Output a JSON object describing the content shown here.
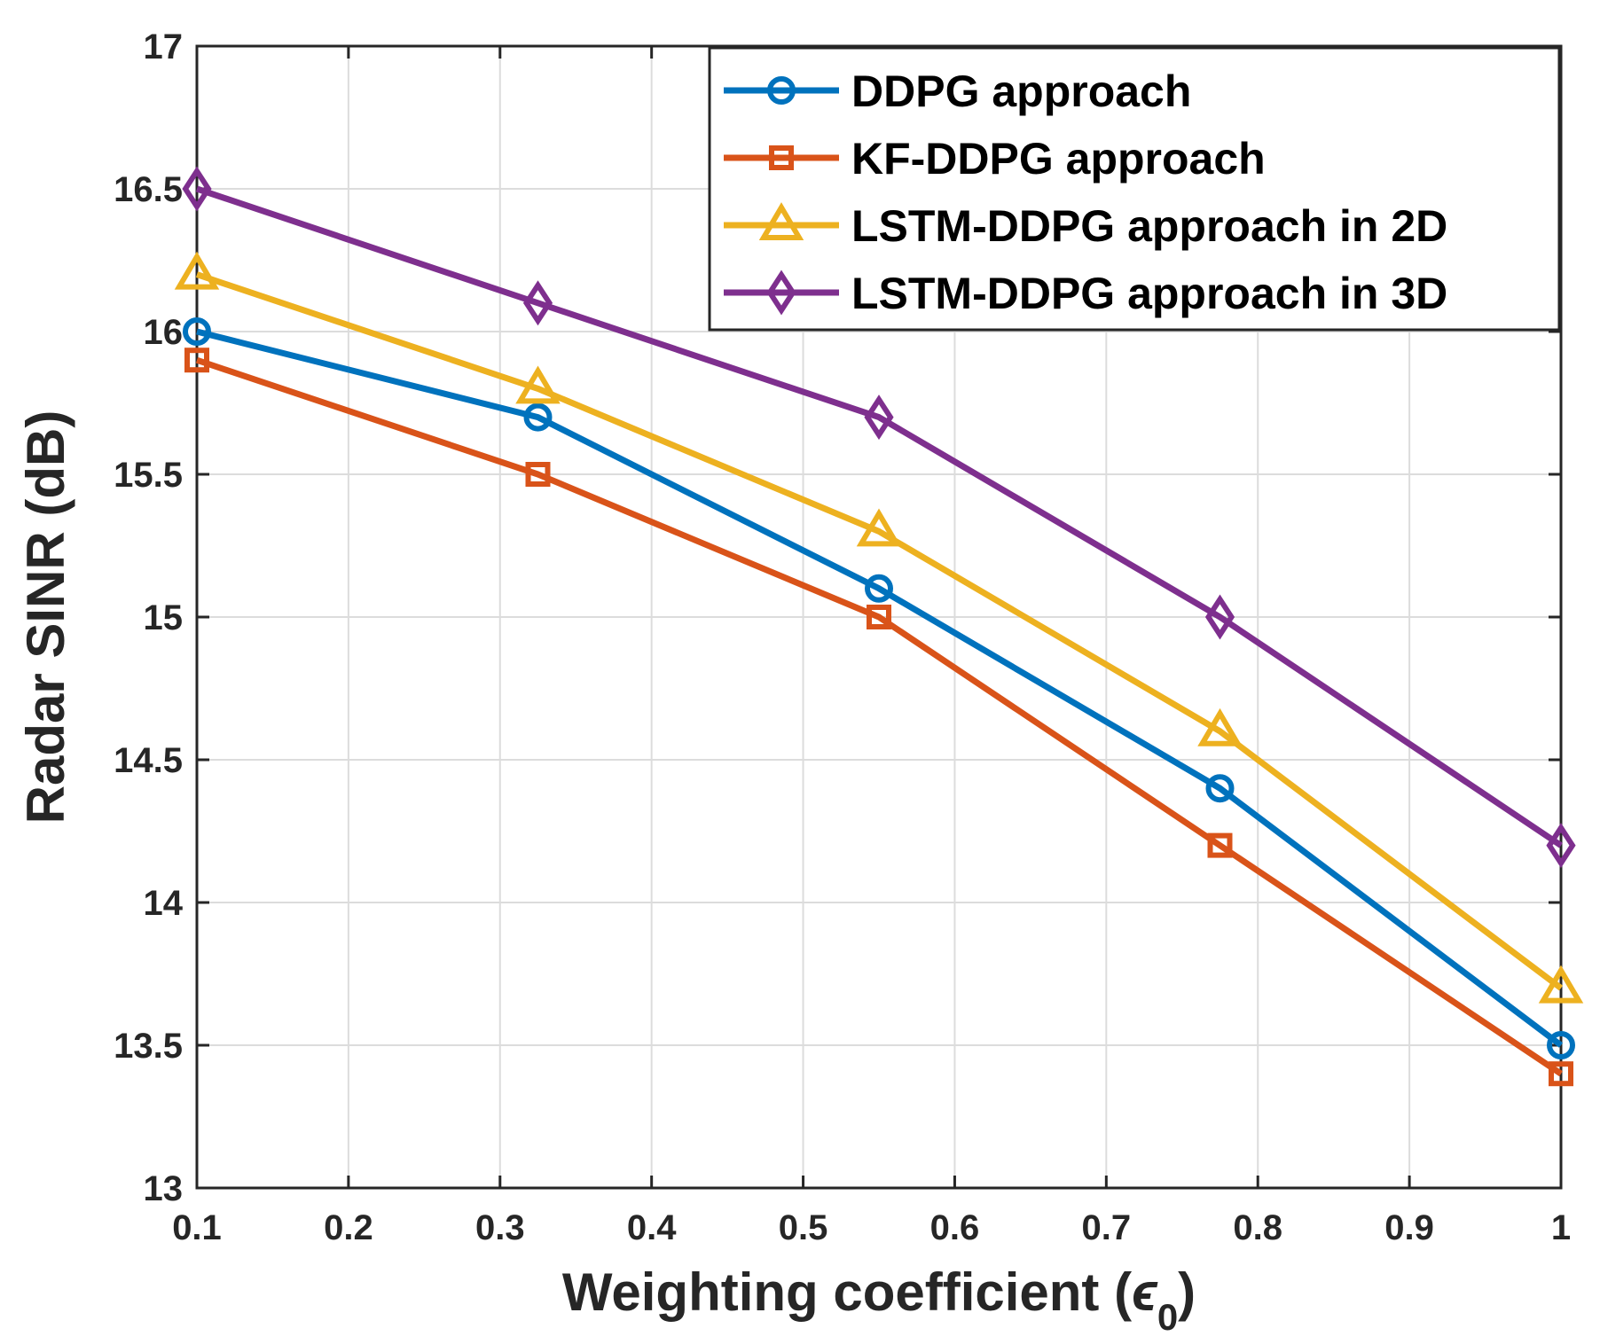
{
  "chart_data": {
    "type": "line",
    "title": "",
    "xlabel": "Weighting coefficient (",
    "xlabel_symbol": "ϵ",
    "xlabel_subscript": "0",
    "xlabel_close": ")",
    "ylabel": "Radar SINR (dB)",
    "xlim": [
      0.1,
      1
    ],
    "ylim": [
      13,
      17
    ],
    "xticks": [
      0.1,
      0.2,
      0.3,
      0.4,
      0.5,
      0.6,
      0.7,
      0.8,
      0.9,
      1
    ],
    "xtick_labels": [
      "0.1",
      "0.2",
      "0.3",
      "0.4",
      "0.5",
      "0.6",
      "0.7",
      "0.8",
      "0.9",
      "1"
    ],
    "yticks": [
      13,
      13.5,
      14,
      14.5,
      15,
      15.5,
      16,
      16.5,
      17
    ],
    "ytick_labels": [
      "13",
      "13.5",
      "14",
      "14.5",
      "15",
      "15.5",
      "16",
      "16.5",
      "17"
    ],
    "grid": true,
    "legend_position": "top-right",
    "x": [
      0.1,
      0.325,
      0.55,
      0.775,
      1.0
    ],
    "series": [
      {
        "name": "DDPG approach",
        "color": "#0072BD",
        "marker": "circle",
        "values": [
          16.0,
          15.7,
          15.1,
          14.4,
          13.5
        ]
      },
      {
        "name": "KF-DDPG approach",
        "color": "#D95319",
        "marker": "square",
        "values": [
          15.9,
          15.5,
          15.0,
          14.2,
          13.4
        ]
      },
      {
        "name": "LSTM-DDPG approach in 2D",
        "color": "#EDB120",
        "marker": "triangle",
        "values": [
          16.2,
          15.8,
          15.3,
          14.6,
          13.7
        ]
      },
      {
        "name": "LSTM-DDPG approach in 3D",
        "color": "#7E2F8E",
        "marker": "diamond",
        "values": [
          16.5,
          16.1,
          15.7,
          15.0,
          14.2
        ]
      }
    ]
  }
}
